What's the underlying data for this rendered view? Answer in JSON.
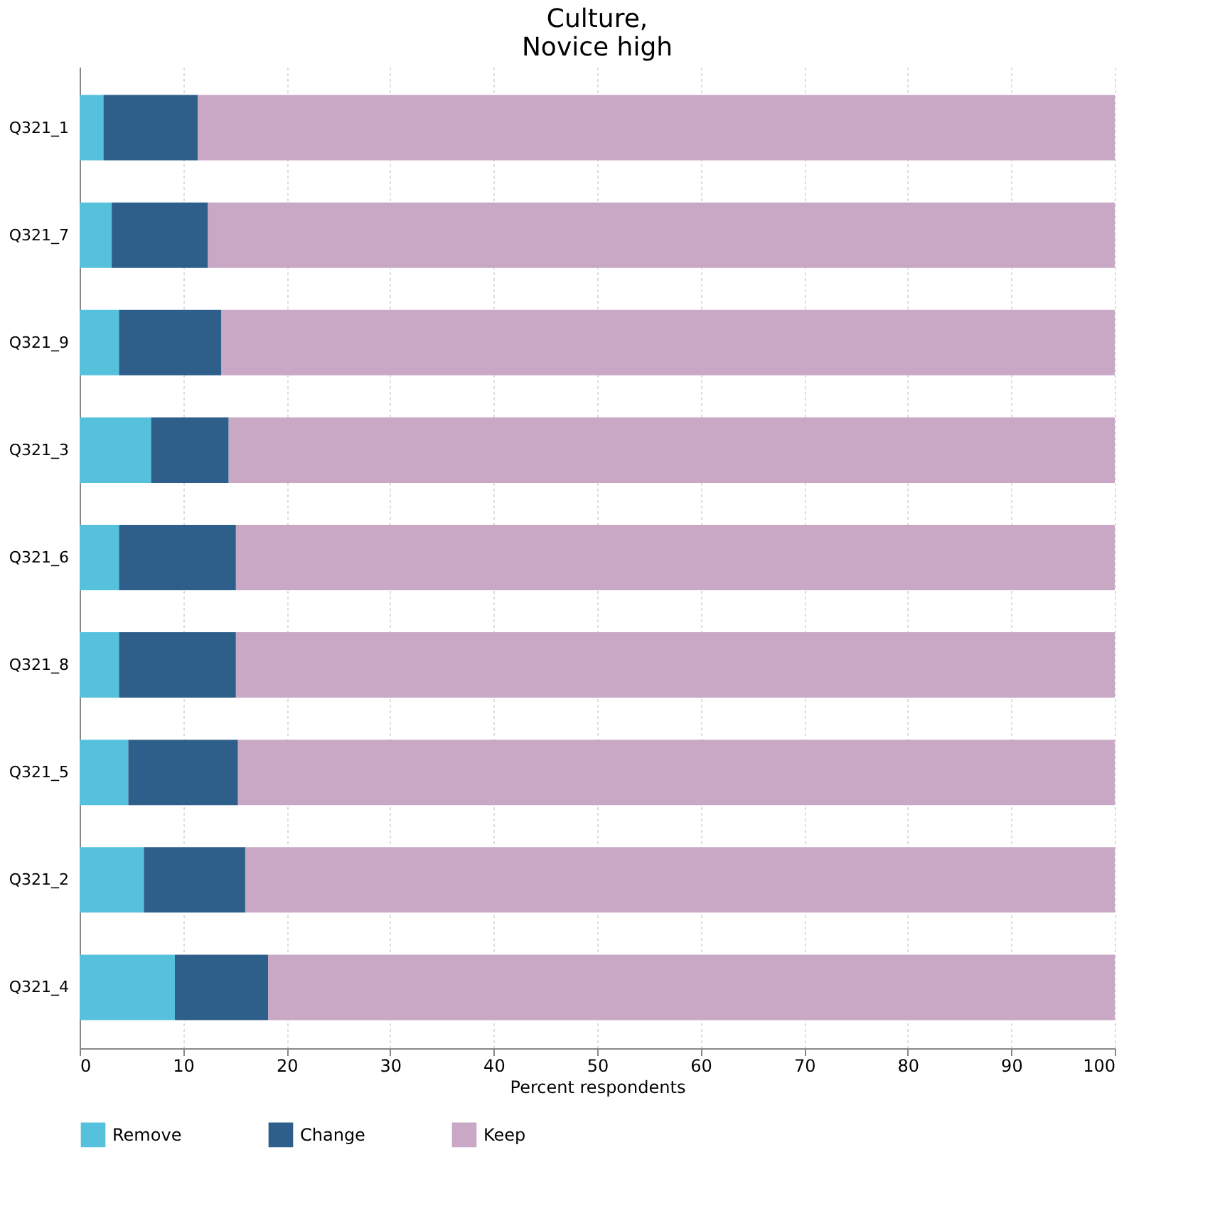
{
  "chart_data": {
    "type": "bar",
    "orientation": "horizontal",
    "stacked": true,
    "title": "Culture,\nNovice high",
    "xlabel": "Percent respondents",
    "categories": [
      "Q321_1",
      "Q321_7",
      "Q321_9",
      "Q321_3",
      "Q321_6",
      "Q321_8",
      "Q321_5",
      "Q321_2",
      "Q321_4"
    ],
    "series": [
      {
        "name": "Remove",
        "color": "#56c1dc",
        "values": [
          2.3,
          3.1,
          3.8,
          6.9,
          3.8,
          3.8,
          4.7,
          6.2,
          9.2
        ]
      },
      {
        "name": "Change",
        "color": "#2e5f8a",
        "values": [
          9.1,
          9.3,
          9.9,
          7.5,
          11.3,
          11.3,
          10.6,
          9.8,
          9.0
        ]
      },
      {
        "name": "Keep",
        "color": "#c9a8c6",
        "values": [
          88.6,
          87.6,
          86.3,
          85.6,
          84.9,
          84.9,
          84.7,
          84.0,
          81.8
        ]
      }
    ],
    "xlim": [
      0,
      100
    ],
    "xticks": [
      0,
      10,
      20,
      30,
      40,
      50,
      60,
      70,
      80,
      90,
      100
    ],
    "grid": "x",
    "legend": "bottom"
  }
}
